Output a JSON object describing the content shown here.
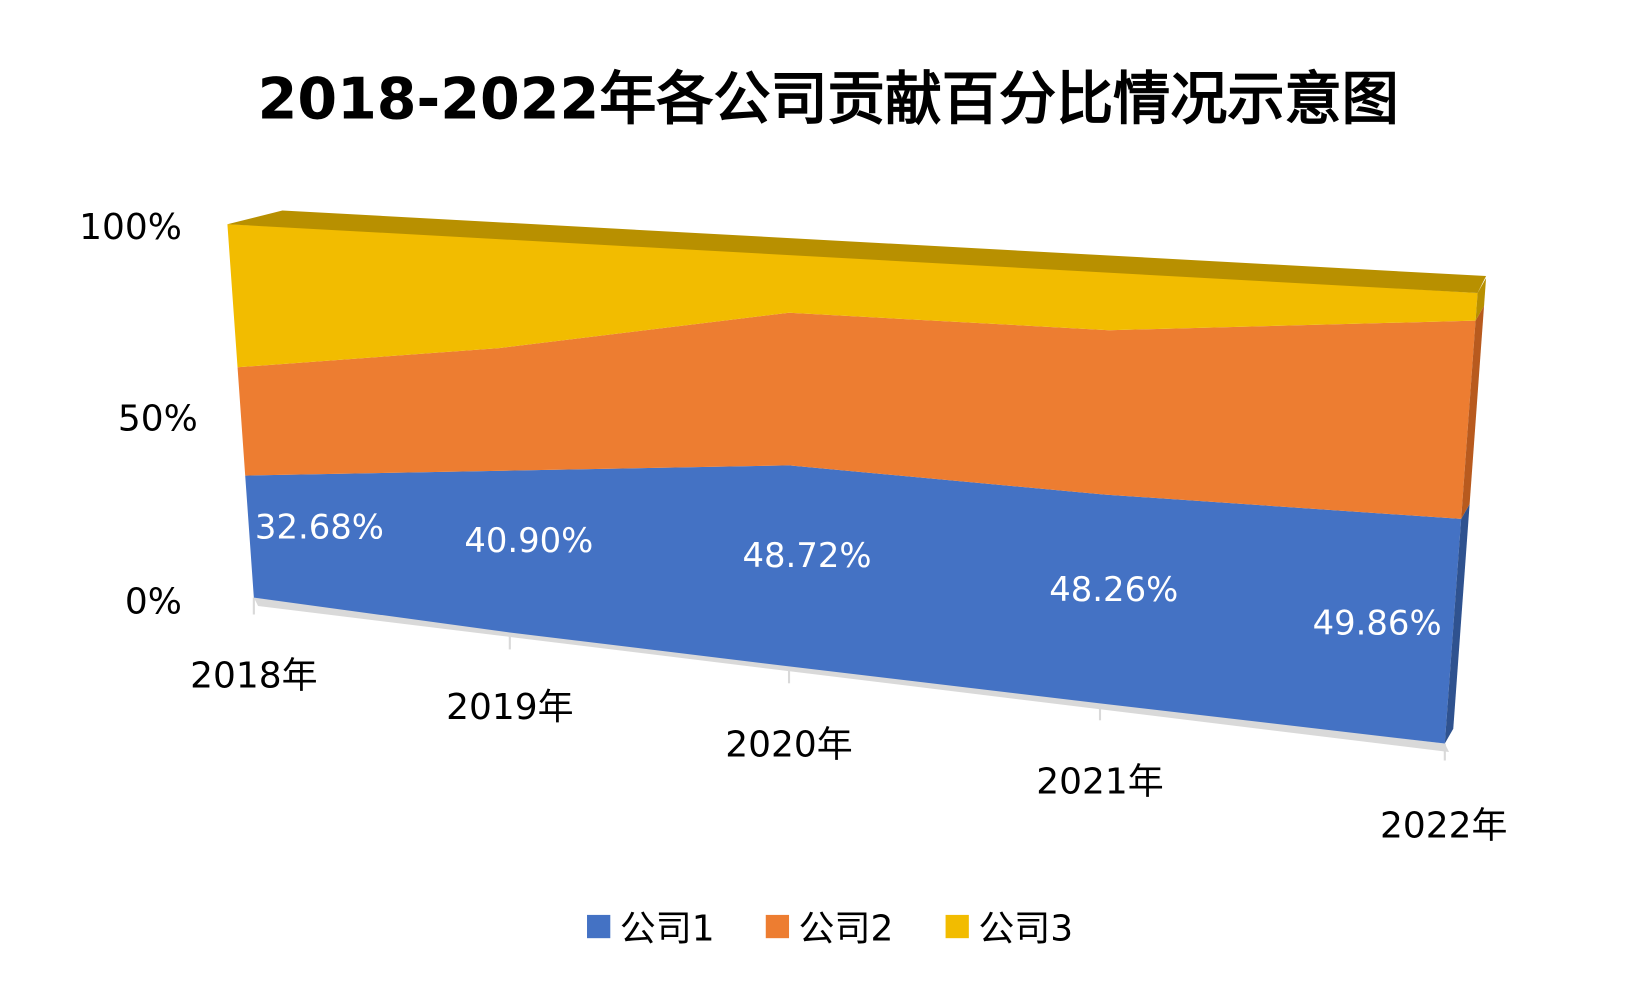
{
  "chart_data": {
    "type": "area",
    "subtype": "3d-100%-stacked",
    "title": "2018-2022年各公司贡献百分比情况示意图",
    "categories": [
      "2018年",
      "2019年",
      "2020年",
      "2021年",
      "2022年"
    ],
    "y_ticks": [
      "0%",
      "50%",
      "100%"
    ],
    "ylim": [
      0,
      100
    ],
    "legend_position": "bottom",
    "series": [
      {
        "name": "公司1",
        "color": "#4472C4",
        "values": [
          32.68,
          40.9,
          48.72,
          48.26,
          49.86
        ],
        "labels": [
          "32.68%",
          "40.90%",
          "48.72%",
          "48.26%",
          "49.86%"
        ]
      },
      {
        "name": "公司2",
        "color": "#ED7D31",
        "values": [
          29,
          31,
          37,
          38,
          44
        ]
      },
      {
        "name": "公司3",
        "color": "#F2BC00",
        "values": [
          38.32,
          28.1,
          14.28,
          13.74,
          6.14
        ]
      }
    ]
  }
}
